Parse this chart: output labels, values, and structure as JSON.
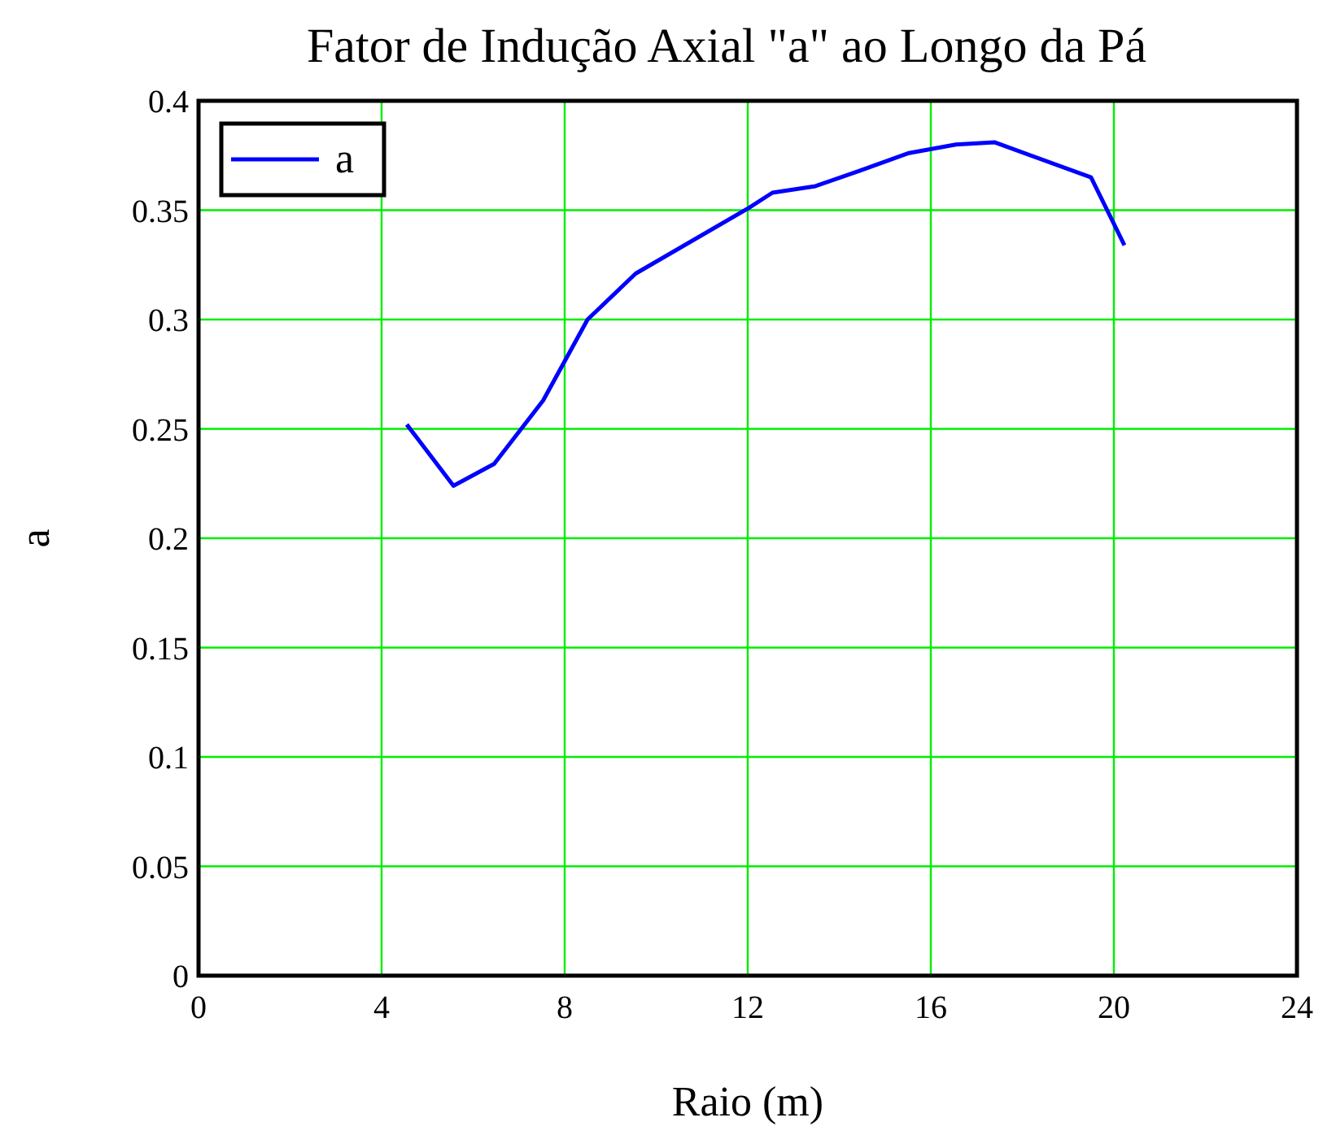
{
  "chart_data": {
    "type": "line",
    "title": "Fator de Indução Axial \"a\" ao Longo da Pá",
    "xlabel": "Raio (m)",
    "ylabel": "a",
    "xlim": [
      0,
      24
    ],
    "xticks": [
      0,
      4,
      8,
      12,
      16,
      20,
      24
    ],
    "ylim": [
      0,
      0.4
    ],
    "yticks": [
      0,
      0.05,
      0.1,
      0.15,
      0.2,
      0.25,
      0.3,
      0.35,
      0.4
    ],
    "grid": true,
    "legend": "top left",
    "line_style": "solid",
    "series": [
      {
        "name": "a",
        "color": "#0000ff",
        "x": [
          4.55,
          5.57,
          6.46,
          7.53,
          8.5,
          9.55,
          12.02,
          12.54,
          13.48,
          14.44,
          15.5,
          16.55,
          17.4,
          19.5,
          20.23
        ],
        "values": [
          0.252,
          0.224,
          0.234,
          0.263,
          0.3,
          0.321,
          0.351,
          0.358,
          0.361,
          0.368,
          0.376,
          0.38,
          0.381,
          0.365,
          0.334
        ]
      }
    ]
  }
}
